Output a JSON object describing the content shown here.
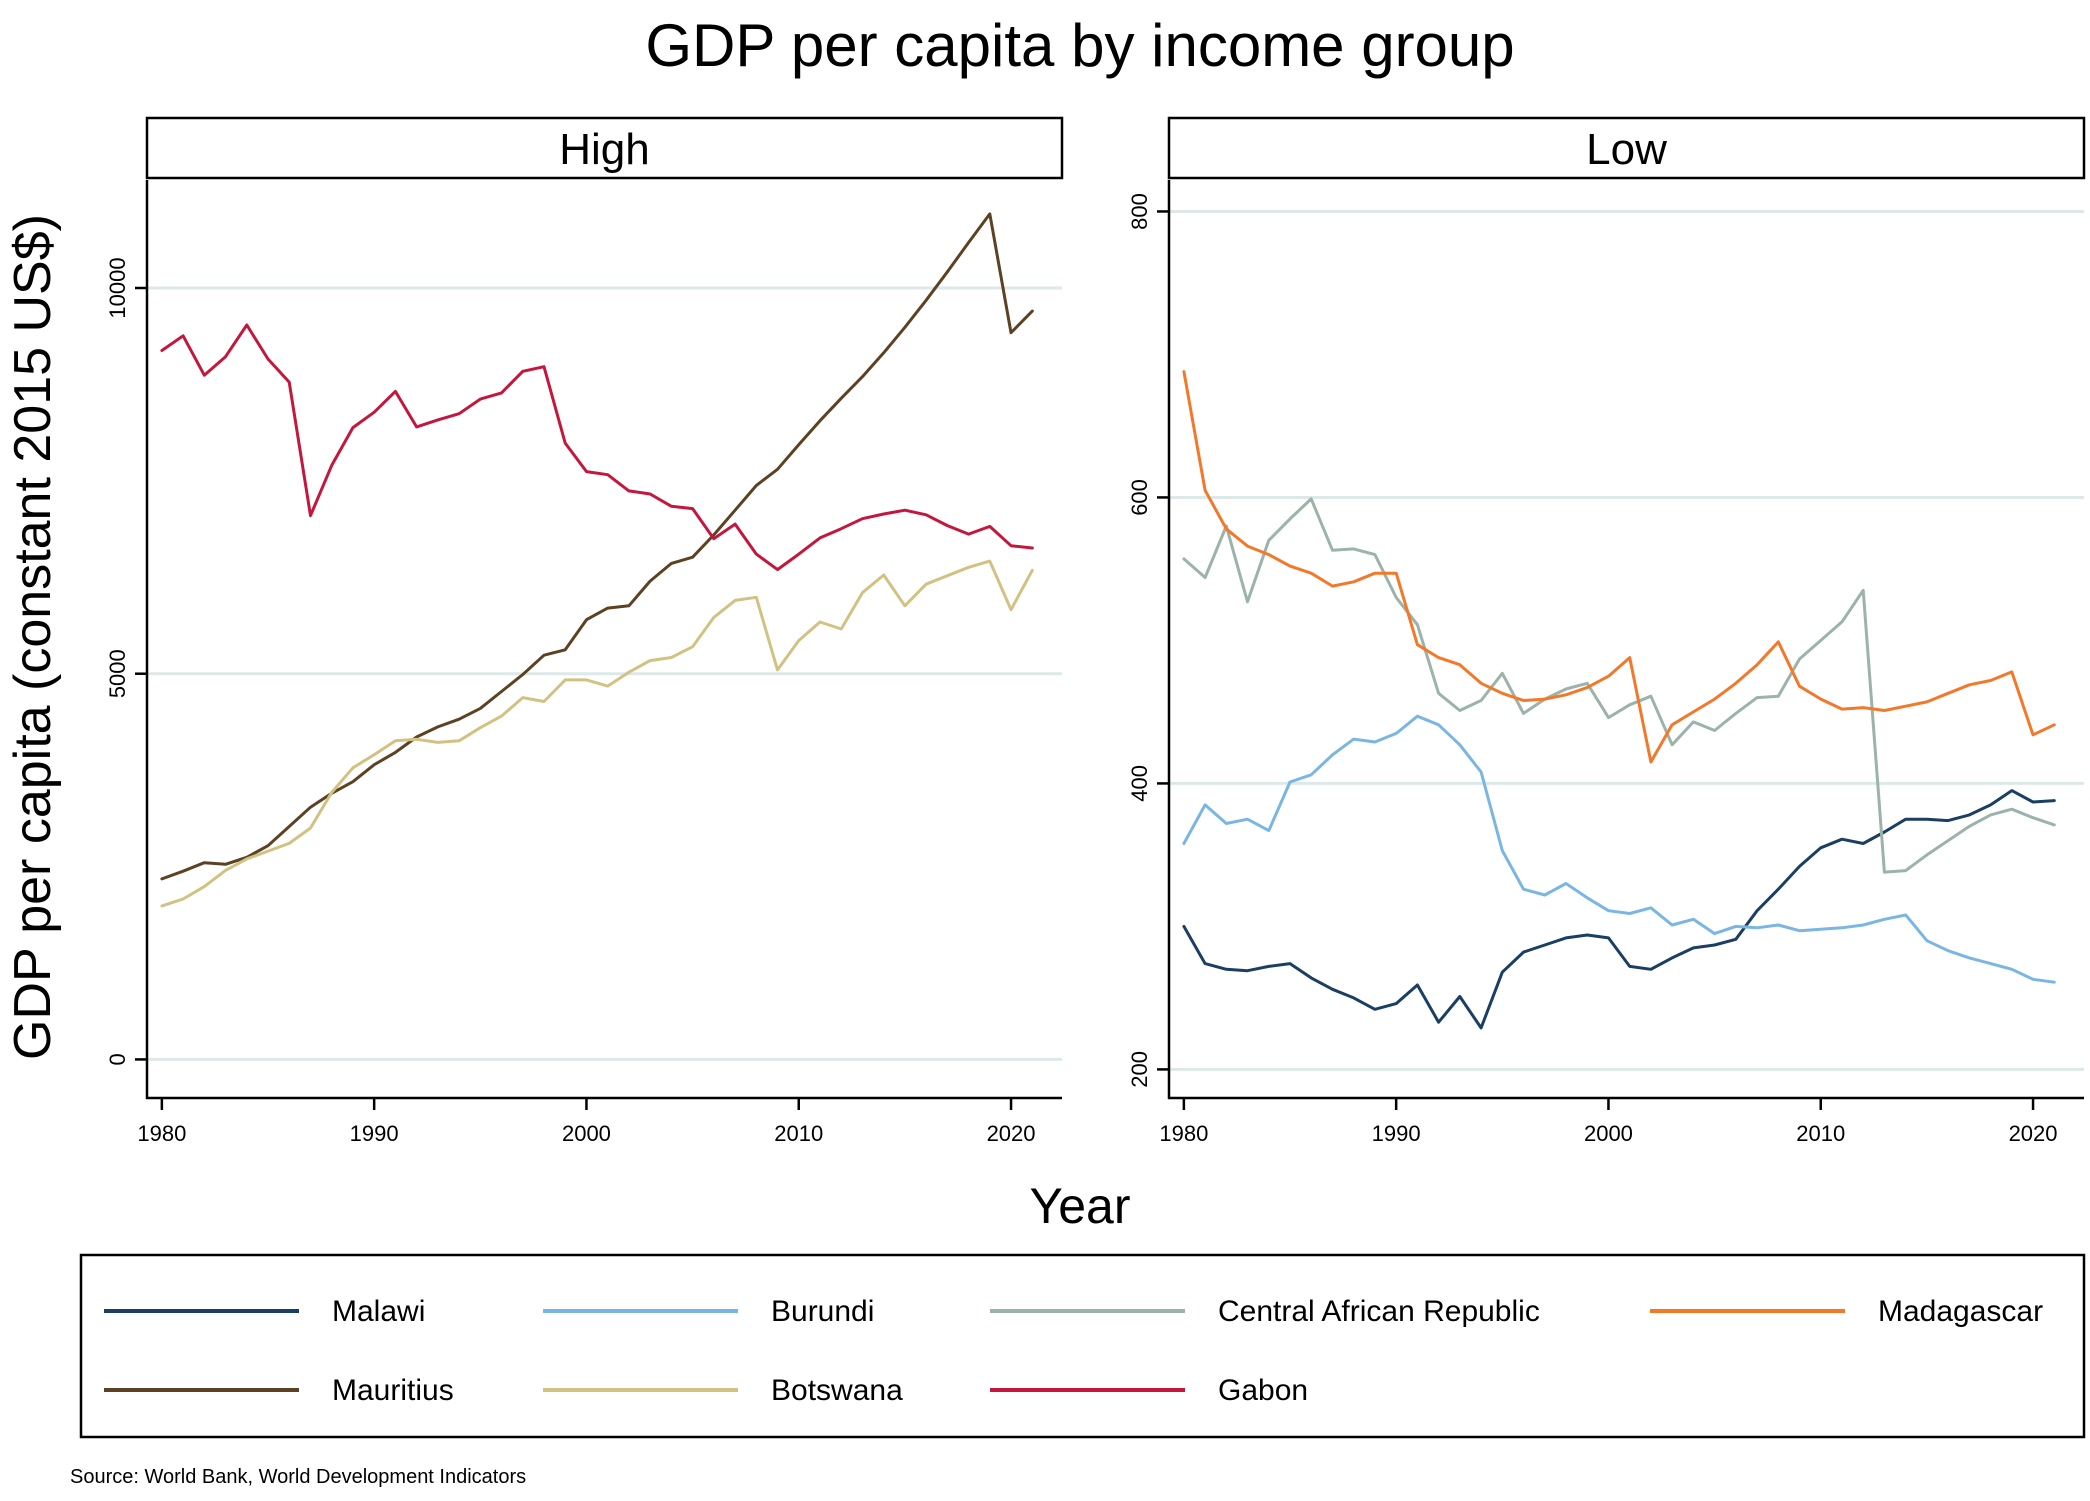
{
  "title": "GDP per capita by income group",
  "ylabel": "GDP per capita (constant 2015 US$)",
  "xlabel": "Year",
  "source": "Source: World Bank, World Development Indicators",
  "colors": {
    "Malawi": "#1a3f63",
    "Burundi": "#7ab6e3",
    "Central African Republic": "#9bb3a8",
    "Madagascar": "#f4782a",
    "Mauritius": "#5c4222",
    "Botswana": "#d2c282",
    "Gabon": "#c3173d",
    "gridline": "#dde9e8"
  },
  "legend": [
    {
      "name": "Malawi",
      "color": "#1a3f63"
    },
    {
      "name": "Burundi",
      "color": "#7ab6e3"
    },
    {
      "name": "Central African Republic",
      "color": "#9bb3a8"
    },
    {
      "name": "Madagascar",
      "color": "#f4782a"
    },
    {
      "name": "Mauritius",
      "color": "#5c4222"
    },
    {
      "name": "Botswana",
      "color": "#d2c282"
    },
    {
      "name": "Gabon",
      "color": "#c3173d"
    }
  ],
  "chart_data": [
    {
      "type": "line",
      "panel": "High",
      "x": [
        1980,
        1981,
        1982,
        1983,
        1984,
        1985,
        1986,
        1987,
        1988,
        1989,
        1990,
        1991,
        1992,
        1993,
        1994,
        1995,
        1996,
        1997,
        1998,
        1999,
        2000,
        2001,
        2002,
        2003,
        2004,
        2005,
        2006,
        2007,
        2008,
        2009,
        2010,
        2011,
        2012,
        2013,
        2014,
        2015,
        2016,
        2017,
        2018,
        2019,
        2020,
        2021
      ],
      "xticks": [
        1980,
        1990,
        2000,
        2010,
        2020
      ],
      "xticklabels": [
        "1980",
        "1990",
        "2000",
        "2010",
        "2020"
      ],
      "xlim": [
        1979.3,
        2022.4
      ],
      "yticks": [
        0,
        5000,
        10000
      ],
      "yticklabels": [
        "0",
        "5000",
        "10000"
      ],
      "ylim": [
        -500,
        11400
      ],
      "grid": true,
      "series": [
        {
          "name": "Mauritius",
          "values": [
            2340,
            2440,
            2550,
            2530,
            2620,
            2770,
            3020,
            3270,
            3450,
            3600,
            3820,
            3980,
            4180,
            4310,
            4410,
            4550,
            4770,
            4990,
            5240,
            5310,
            5700,
            5850,
            5880,
            6200,
            6430,
            6510,
            6800,
            7120,
            7440,
            7650,
            7970,
            8280,
            8570,
            8850,
            9160,
            9490,
            9840,
            10210,
            10590,
            10960,
            9420,
            9700
          ]
        },
        {
          "name": "Botswana",
          "values": [
            1990,
            2080,
            2240,
            2450,
            2600,
            2700,
            2800,
            3000,
            3460,
            3780,
            3950,
            4130,
            4150,
            4110,
            4130,
            4300,
            4450,
            4690,
            4640,
            4920,
            4920,
            4840,
            5020,
            5170,
            5210,
            5350,
            5730,
            5950,
            5990,
            5050,
            5430,
            5670,
            5580,
            6050,
            6280,
            5880,
            6160,
            6270,
            6380,
            6460,
            5830,
            6340
          ]
        },
        {
          "name": "Gabon",
          "values": [
            9190,
            9380,
            8870,
            9110,
            9520,
            9080,
            8780,
            7050,
            7700,
            8190,
            8390,
            8660,
            8200,
            8290,
            8370,
            8560,
            8640,
            8920,
            8980,
            7990,
            7620,
            7580,
            7370,
            7330,
            7170,
            7140,
            6750,
            6940,
            6550,
            6350,
            6550,
            6760,
            6880,
            7010,
            7070,
            7120,
            7060,
            6920,
            6810,
            6910,
            6660,
            6630
          ]
        }
      ]
    },
    {
      "type": "line",
      "panel": "Low",
      "x": [
        1980,
        1981,
        1982,
        1983,
        1984,
        1985,
        1986,
        1987,
        1988,
        1989,
        1990,
        1991,
        1992,
        1993,
        1994,
        1995,
        1996,
        1997,
        1998,
        1999,
        2000,
        2001,
        2002,
        2003,
        2004,
        2005,
        2006,
        2007,
        2008,
        2009,
        2010,
        2011,
        2012,
        2013,
        2014,
        2015,
        2016,
        2017,
        2018,
        2019,
        2020,
        2021
      ],
      "xticks": [
        1980,
        1990,
        2000,
        2010,
        2020
      ],
      "xticklabels": [
        "1980",
        "1990",
        "2000",
        "2010",
        "2020"
      ],
      "xlim": [
        1979.3,
        2022.4
      ],
      "yticks": [
        200,
        400,
        600,
        800
      ],
      "yticklabels": [
        "200",
        "400",
        "600",
        "800"
      ],
      "ylim": [
        180,
        822
      ],
      "grid": true,
      "series": [
        {
          "name": "Malawi",
          "values": [
            300,
            274,
            270,
            269,
            272,
            274,
            264,
            256,
            250,
            242,
            246,
            259,
            233,
            251,
            229,
            268,
            282,
            287,
            292,
            294,
            292,
            272,
            270,
            278,
            285,
            287,
            291,
            311,
            326,
            342,
            355,
            361,
            358,
            366,
            375,
            375,
            374,
            378,
            385,
            395,
            387,
            388
          ]
        },
        {
          "name": "Burundi",
          "values": [
            358,
            385,
            372,
            375,
            367,
            401,
            406,
            420,
            431,
            429,
            435,
            447,
            441,
            427,
            408,
            353,
            326,
            322,
            330,
            320,
            311,
            309,
            313,
            301,
            305,
            295,
            300,
            299,
            301,
            297,
            298,
            299,
            301,
            305,
            308,
            290,
            283,
            278,
            274,
            270,
            263,
            261
          ]
        },
        {
          "name": "Central African Republic",
          "values": [
            557,
            544,
            580,
            527,
            570,
            585,
            599,
            563,
            564,
            560,
            530,
            511,
            463,
            451,
            458,
            477,
            449,
            459,
            466,
            470,
            446,
            455,
            461,
            427,
            443,
            437,
            449,
            460,
            461,
            487,
            500,
            513,
            535,
            338,
            339,
            350,
            360,
            370,
            378,
            382,
            376,
            371
          ]
        },
        {
          "name": "Madagascar",
          "values": [
            688,
            605,
            578,
            566,
            560,
            552,
            547,
            538,
            541,
            547,
            547,
            497,
            488,
            483,
            470,
            463,
            458,
            459,
            462,
            467,
            475,
            488,
            415,
            441,
            450,
            459,
            470,
            483,
            499,
            468,
            459,
            452,
            453,
            451,
            454,
            457,
            463,
            469,
            472,
            478,
            434,
            441
          ]
        }
      ]
    }
  ]
}
